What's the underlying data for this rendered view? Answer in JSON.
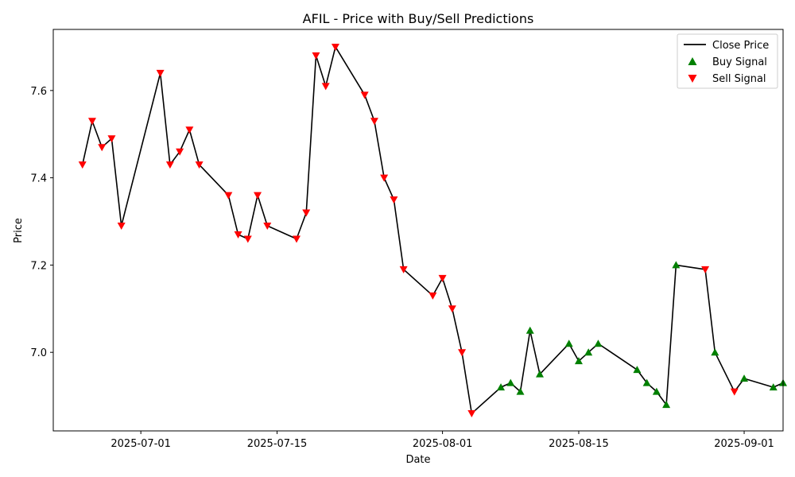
{
  "chart_data": {
    "type": "line",
    "title": "AFIL - Price with Buy/Sell Predictions",
    "xlabel": "Date",
    "ylabel": "Price",
    "x_ticks": [
      "2025-07-01",
      "2025-07-15",
      "2025-08-01",
      "2025-08-15",
      "2025-09-01"
    ],
    "y_ticks": [
      7.0,
      7.2,
      7.4,
      7.6
    ],
    "y_tick_labels": [
      "7.0",
      "7.2",
      "7.4",
      "7.6"
    ],
    "xlim": [
      "2025-06-22",
      "2025-09-05"
    ],
    "ylim": [
      6.82,
      7.74
    ],
    "grid": false,
    "legend_position": "top-right",
    "colors": {
      "line": "#000000",
      "buy": "#008000",
      "sell": "#ff0000"
    },
    "series": [
      {
        "name": "Close Price",
        "kind": "line",
        "points": [
          [
            "2025-06-25",
            7.43
          ],
          [
            "2025-06-26",
            7.53
          ],
          [
            "2025-06-27",
            7.47
          ],
          [
            "2025-06-28",
            7.49
          ],
          [
            "2025-06-29",
            7.29
          ],
          [
            "2025-07-03",
            7.64
          ],
          [
            "2025-07-04",
            7.43
          ],
          [
            "2025-07-05",
            7.46
          ],
          [
            "2025-07-06",
            7.51
          ],
          [
            "2025-07-07",
            7.43
          ],
          [
            "2025-07-10",
            7.36
          ],
          [
            "2025-07-11",
            7.27
          ],
          [
            "2025-07-12",
            7.26
          ],
          [
            "2025-07-13",
            7.36
          ],
          [
            "2025-07-14",
            7.29
          ],
          [
            "2025-07-17",
            7.26
          ],
          [
            "2025-07-18",
            7.32
          ],
          [
            "2025-07-19",
            7.68
          ],
          [
            "2025-07-20",
            7.61
          ],
          [
            "2025-07-21",
            7.7
          ],
          [
            "2025-07-24",
            7.59
          ],
          [
            "2025-07-25",
            7.53
          ],
          [
            "2025-07-26",
            7.4
          ],
          [
            "2025-07-27",
            7.35
          ],
          [
            "2025-07-28",
            7.19
          ],
          [
            "2025-07-31",
            7.13
          ],
          [
            "2025-08-01",
            7.17
          ],
          [
            "2025-08-02",
            7.1
          ],
          [
            "2025-08-03",
            7.0
          ],
          [
            "2025-08-04",
            6.86
          ],
          [
            "2025-08-07",
            6.92
          ],
          [
            "2025-08-08",
            6.93
          ],
          [
            "2025-08-09",
            6.91
          ],
          [
            "2025-08-10",
            7.05
          ],
          [
            "2025-08-11",
            6.95
          ],
          [
            "2025-08-14",
            7.02
          ],
          [
            "2025-08-15",
            6.98
          ],
          [
            "2025-08-16",
            7.0
          ],
          [
            "2025-08-17",
            7.02
          ],
          [
            "2025-08-21",
            6.96
          ],
          [
            "2025-08-22",
            6.93
          ],
          [
            "2025-08-23",
            6.91
          ],
          [
            "2025-08-24",
            6.88
          ],
          [
            "2025-08-25",
            7.2
          ],
          [
            "2025-08-28",
            7.19
          ],
          [
            "2025-08-29",
            7.0
          ],
          [
            "2025-08-31",
            6.91
          ],
          [
            "2025-09-01",
            6.94
          ],
          [
            "2025-09-04",
            6.92
          ],
          [
            "2025-09-05",
            6.93
          ]
        ]
      },
      {
        "name": "Buy Signal",
        "kind": "marker-up",
        "points": [
          [
            "2025-08-07",
            6.92
          ],
          [
            "2025-08-08",
            6.93
          ],
          [
            "2025-08-09",
            6.91
          ],
          [
            "2025-08-10",
            7.05
          ],
          [
            "2025-08-11",
            6.95
          ],
          [
            "2025-08-14",
            7.02
          ],
          [
            "2025-08-15",
            6.98
          ],
          [
            "2025-08-16",
            7.0
          ],
          [
            "2025-08-17",
            7.02
          ],
          [
            "2025-08-21",
            6.96
          ],
          [
            "2025-08-22",
            6.93
          ],
          [
            "2025-08-23",
            6.91
          ],
          [
            "2025-08-24",
            6.88
          ],
          [
            "2025-08-25",
            7.2
          ],
          [
            "2025-08-29",
            7.0
          ],
          [
            "2025-09-01",
            6.94
          ],
          [
            "2025-09-04",
            6.92
          ],
          [
            "2025-09-05",
            6.93
          ]
        ]
      },
      {
        "name": "Sell Signal",
        "kind": "marker-down",
        "points": [
          [
            "2025-06-25",
            7.43
          ],
          [
            "2025-06-26",
            7.53
          ],
          [
            "2025-06-27",
            7.47
          ],
          [
            "2025-06-28",
            7.49
          ],
          [
            "2025-06-29",
            7.29
          ],
          [
            "2025-07-03",
            7.64
          ],
          [
            "2025-07-04",
            7.43
          ],
          [
            "2025-07-05",
            7.46
          ],
          [
            "2025-07-06",
            7.51
          ],
          [
            "2025-07-07",
            7.43
          ],
          [
            "2025-07-10",
            7.36
          ],
          [
            "2025-07-11",
            7.27
          ],
          [
            "2025-07-12",
            7.26
          ],
          [
            "2025-07-13",
            7.36
          ],
          [
            "2025-07-14",
            7.29
          ],
          [
            "2025-07-17",
            7.26
          ],
          [
            "2025-07-18",
            7.32
          ],
          [
            "2025-07-19",
            7.68
          ],
          [
            "2025-07-20",
            7.61
          ],
          [
            "2025-07-21",
            7.7
          ],
          [
            "2025-07-24",
            7.59
          ],
          [
            "2025-07-25",
            7.53
          ],
          [
            "2025-07-26",
            7.4
          ],
          [
            "2025-07-27",
            7.35
          ],
          [
            "2025-07-28",
            7.19
          ],
          [
            "2025-07-31",
            7.13
          ],
          [
            "2025-08-01",
            7.17
          ],
          [
            "2025-08-02",
            7.1
          ],
          [
            "2025-08-03",
            7.0
          ],
          [
            "2025-08-04",
            6.86
          ],
          [
            "2025-08-28",
            7.19
          ],
          [
            "2025-08-31",
            6.91
          ]
        ]
      }
    ]
  }
}
